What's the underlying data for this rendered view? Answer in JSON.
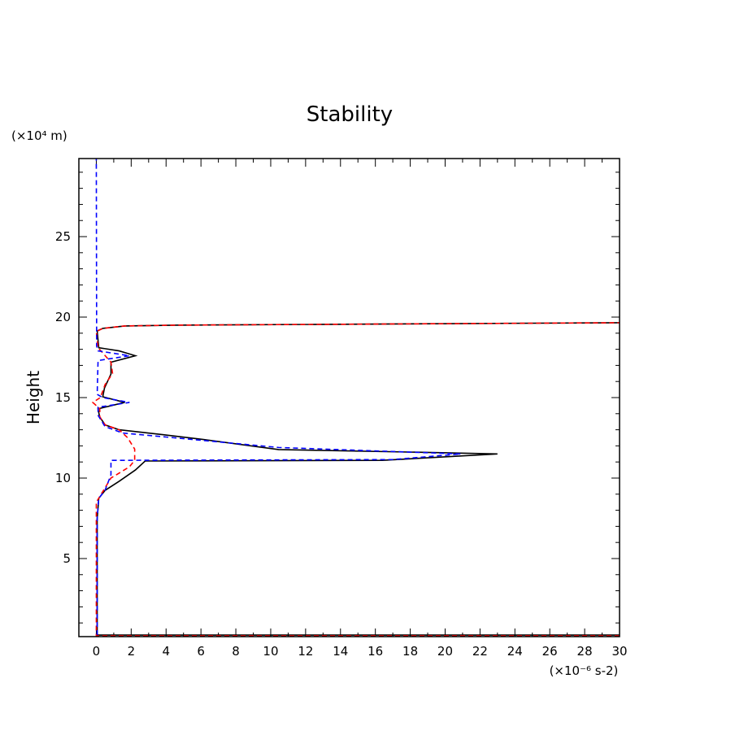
{
  "chart_data": {
    "type": "line",
    "title": "Stability",
    "ylabel": "Height",
    "yunit": "(×10⁴ m)",
    "xunit": "(×10⁻⁶ s-2)",
    "xlim": [
      -1,
      30
    ],
    "ylim": [
      0.15,
      29.85
    ],
    "xticks": [
      0,
      2,
      4,
      6,
      8,
      10,
      12,
      14,
      16,
      18,
      20,
      22,
      24,
      26,
      28,
      30
    ],
    "yticks": [
      5,
      10,
      15,
      20,
      25
    ],
    "grid": false,
    "series": [
      {
        "color": "#000000",
        "style": "solid",
        "points": [
          [
            30,
            0.25
          ],
          [
            0.05,
            0.25
          ],
          [
            0.05,
            7.47
          ],
          [
            0.14,
            8.74
          ],
          [
            0.51,
            9.24
          ],
          [
            1.31,
            9.8
          ],
          [
            2.24,
            10.5
          ],
          [
            2.8,
            11.06
          ],
          [
            16.4,
            11.1
          ],
          [
            23.0,
            11.5
          ],
          [
            20.1,
            11.57
          ],
          [
            10.45,
            11.77
          ],
          [
            6.1,
            12.4
          ],
          [
            3.8,
            12.7
          ],
          [
            1.31,
            13.0
          ],
          [
            0.51,
            13.3
          ],
          [
            0.19,
            13.8
          ],
          [
            0.1,
            14.3
          ],
          [
            1.63,
            14.7
          ],
          [
            0.37,
            15.05
          ],
          [
            0.47,
            15.6
          ],
          [
            0.84,
            16.46
          ],
          [
            0.84,
            17.2
          ],
          [
            2.24,
            17.6
          ],
          [
            1.31,
            17.9
          ],
          [
            0.14,
            18.1
          ],
          [
            0.05,
            19.14
          ],
          [
            0.37,
            19.3
          ],
          [
            1.63,
            19.45
          ],
          [
            4.57,
            19.5
          ],
          [
            30,
            19.65
          ]
        ]
      },
      {
        "color": "#ff0000",
        "style": "dashed",
        "points": [
          [
            30,
            0.2
          ],
          [
            0.0,
            0.2
          ],
          [
            0.0,
            8.5
          ],
          [
            0.84,
            10.0
          ],
          [
            1.9,
            10.7
          ],
          [
            2.2,
            11.1
          ],
          [
            2.2,
            11.8
          ],
          [
            1.8,
            12.5
          ],
          [
            1.31,
            13.0
          ],
          [
            0.51,
            13.3
          ],
          [
            0.2,
            13.8
          ],
          [
            0.2,
            14.3
          ],
          [
            -0.2,
            14.7
          ],
          [
            0.23,
            15.0
          ],
          [
            0.5,
            15.8
          ],
          [
            0.93,
            16.5
          ],
          [
            0.84,
            17.2
          ],
          [
            0.1,
            18.1
          ],
          [
            0.0,
            19.1
          ],
          [
            0.37,
            19.3
          ],
          [
            1.63,
            19.45
          ],
          [
            4.57,
            19.5
          ],
          [
            30,
            19.65
          ]
        ]
      },
      {
        "color": "#0000ff",
        "style": "dashed",
        "points": [
          [
            0.05,
            0.25
          ],
          [
            0.05,
            7.5
          ],
          [
            0.14,
            8.74
          ],
          [
            0.5,
            9.24
          ],
          [
            0.84,
            10.2
          ],
          [
            0.84,
            11.1
          ],
          [
            17,
            11.15
          ],
          [
            20.9,
            11.5
          ],
          [
            10.45,
            11.9
          ],
          [
            4,
            12.55
          ],
          [
            1.5,
            12.8
          ],
          [
            0.5,
            13.2
          ],
          [
            0.1,
            13.9
          ],
          [
            0.1,
            14.4
          ],
          [
            1.9,
            14.7
          ],
          [
            0.37,
            15.0
          ],
          [
            0.05,
            15.2
          ],
          [
            0.1,
            17.3
          ],
          [
            1.9,
            17.6
          ],
          [
            0.1,
            17.9
          ],
          [
            0.02,
            18.2
          ],
          [
            0,
            29.85
          ]
        ]
      }
    ]
  }
}
